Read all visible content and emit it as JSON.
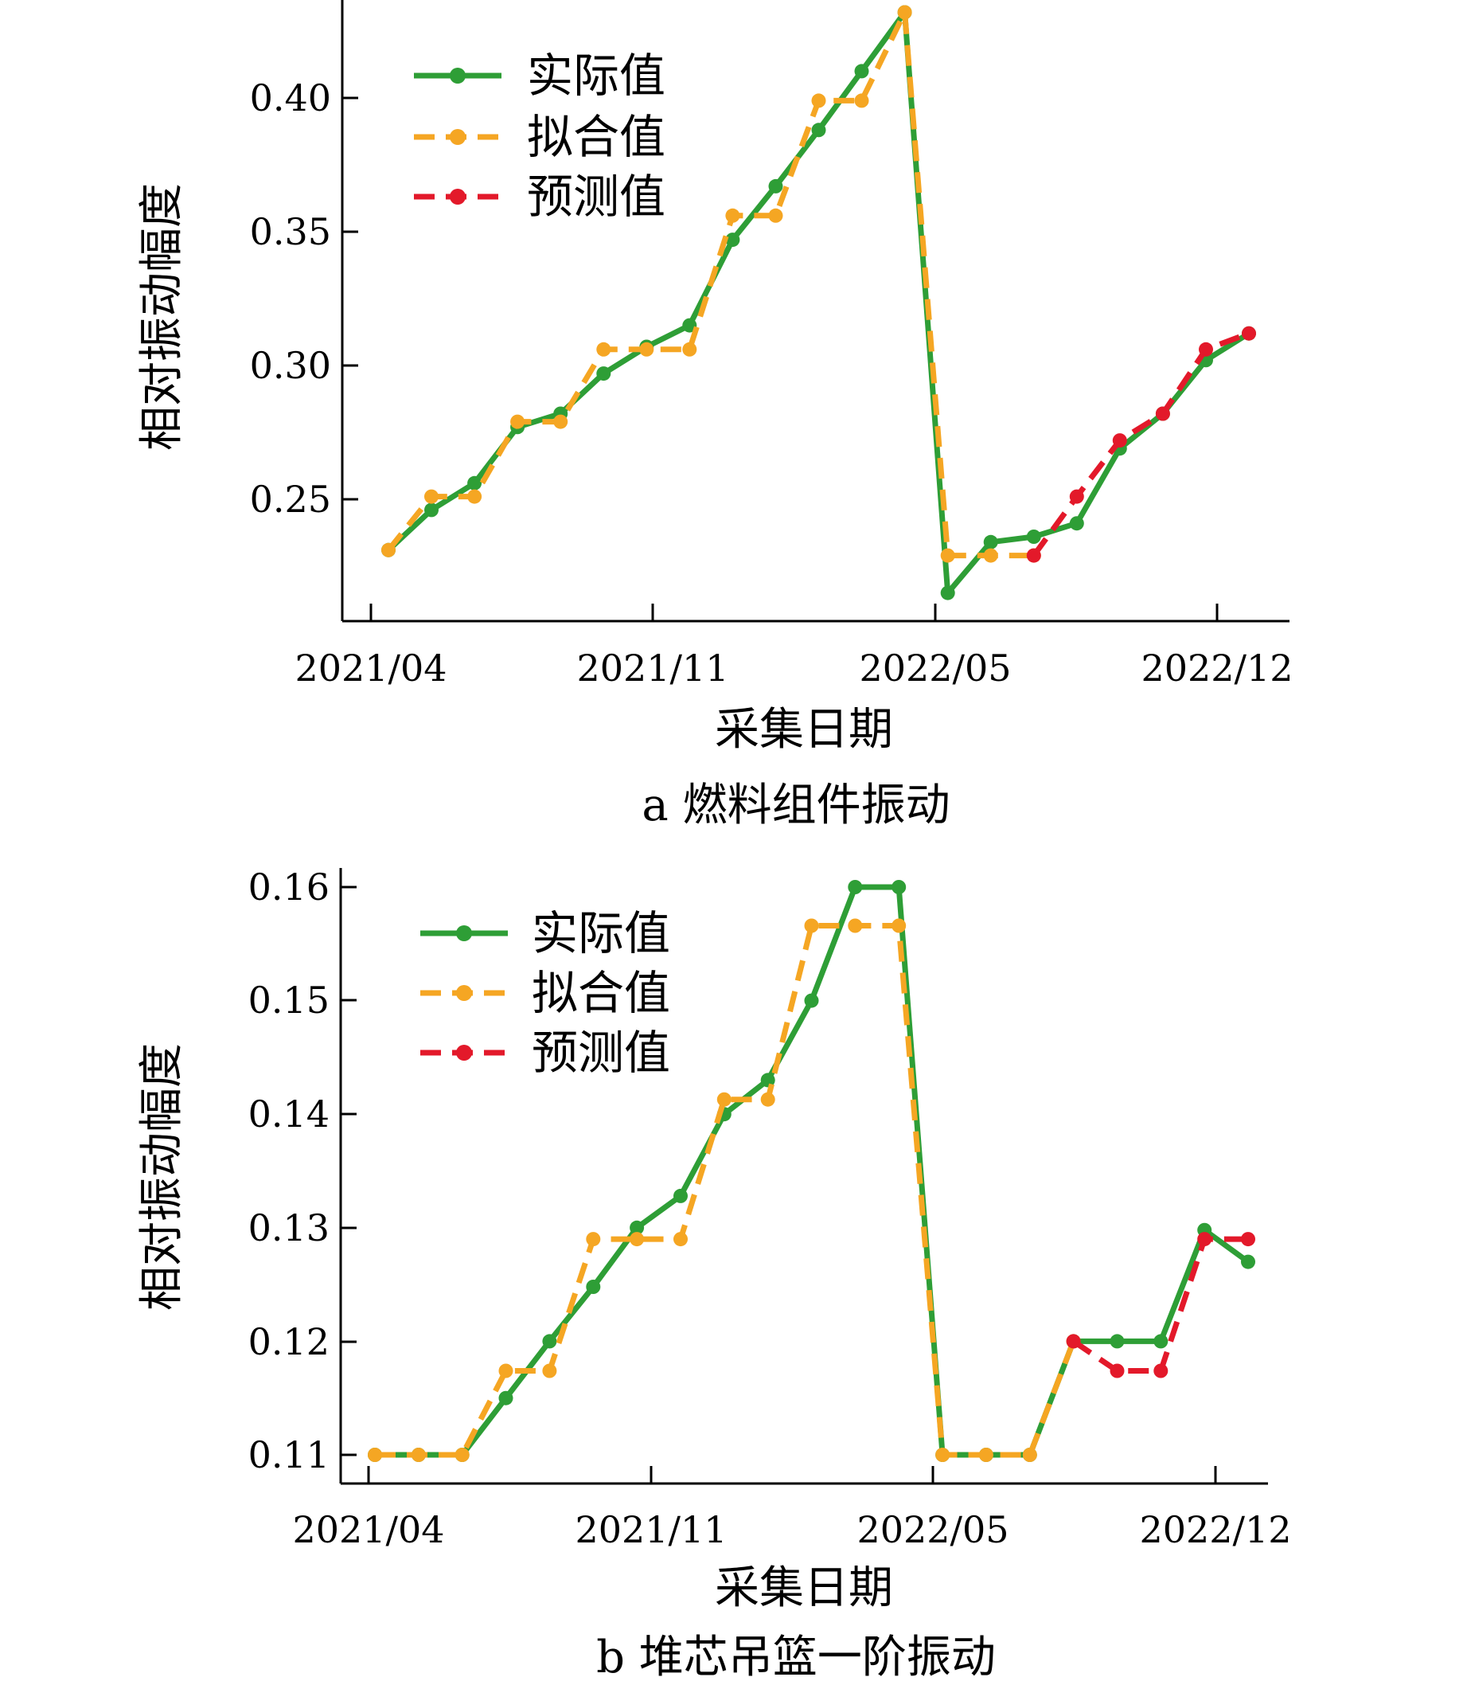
{
  "chart_data": [
    {
      "type": "line",
      "caption": "a  燃料组件振动",
      "xlabel": "采集日期",
      "ylabel": "相对振动幅度",
      "x_ticks": [
        "2021/04",
        "2021/11",
        "2022/05",
        "2022/12"
      ],
      "y_ticks": [
        "0.25",
        "0.30",
        "0.35",
        "0.40"
      ],
      "ylim": [
        0.205,
        0.437
      ],
      "legend_position": "top-left",
      "legend": [
        "实际值",
        "拟合值",
        "预测值"
      ],
      "x": [
        "2021/04",
        "2021/05",
        "2021/06",
        "2021/07",
        "2021/08",
        "2021/09",
        "2021/10",
        "2021/11",
        "2021/12",
        "2022/01",
        "2022/02",
        "2022/03",
        "2022/04",
        "2022/05",
        "2022/06",
        "2022/07",
        "2022/08",
        "2022/09",
        "2022/10",
        "2022/11",
        "2022/12"
      ],
      "series": [
        {
          "name": "实际值",
          "color": "#2e9e36",
          "style": "solid",
          "values": [
            0.231,
            0.246,
            0.256,
            0.277,
            0.282,
            0.297,
            0.307,
            0.315,
            0.347,
            0.367,
            0.388,
            0.41,
            0.432,
            0.215,
            0.234,
            0.236,
            0.241,
            0.269,
            0.282,
            0.302,
            0.312
          ]
        },
        {
          "name": "拟合值",
          "color": "#f5a623",
          "style": "dashed",
          "values": [
            0.231,
            0.251,
            0.251,
            0.279,
            0.279,
            0.306,
            0.306,
            0.306,
            0.356,
            0.356,
            0.399,
            0.399,
            0.432,
            0.229,
            0.229,
            0.229,
            null,
            null,
            null,
            null,
            null
          ]
        },
        {
          "name": "预测值",
          "color": "#e3192a",
          "style": "dashed",
          "values": [
            null,
            null,
            null,
            null,
            null,
            null,
            null,
            null,
            null,
            null,
            null,
            null,
            null,
            null,
            null,
            0.229,
            0.251,
            0.272,
            0.282,
            0.306,
            0.312
          ]
        }
      ]
    },
    {
      "type": "line",
      "caption": "b  堆芯吊篮一阶振动",
      "xlabel": "采集日期",
      "ylabel": "相对振动幅度",
      "x_ticks": [
        "2021/04",
        "2021/11",
        "2022/05",
        "2022/12"
      ],
      "y_ticks": [
        "0.11",
        "0.12",
        "0.13",
        "0.14",
        "0.15",
        "0.16"
      ],
      "ylim": [
        0.1075,
        0.1617
      ],
      "legend_position": "top-left",
      "legend": [
        "实际值",
        "拟合值",
        "预测值"
      ],
      "x": [
        "2021/04",
        "2021/05",
        "2021/06",
        "2021/07",
        "2021/08",
        "2021/09",
        "2021/10",
        "2021/11",
        "2021/12",
        "2022/01",
        "2022/02",
        "2022/03",
        "2022/04",
        "2022/05",
        "2022/06",
        "2022/07",
        "2022/08",
        "2022/09",
        "2022/10",
        "2022/11",
        "2022/12"
      ],
      "series": [
        {
          "name": "实际值",
          "color": "#2e9e36",
          "style": "solid",
          "values": [
            0.11,
            0.11,
            0.11,
            0.115,
            0.12,
            0.1248,
            0.13,
            0.1328,
            0.14,
            0.143,
            0.15,
            0.16,
            0.16,
            0.11,
            0.11,
            0.11,
            0.12,
            0.12,
            0.12,
            0.1298,
            0.127
          ]
        },
        {
          "name": "拟合值",
          "color": "#f5a623",
          "style": "dashed",
          "values": [
            0.11,
            0.11,
            0.11,
            0.1174,
            0.1174,
            0.129,
            0.129,
            0.129,
            0.1413,
            0.1413,
            0.1566,
            0.1566,
            0.1566,
            0.11,
            0.11,
            0.11,
            0.12,
            null,
            null,
            null,
            null
          ]
        },
        {
          "name": "预测值",
          "color": "#e3192a",
          "style": "dashed",
          "values": [
            null,
            null,
            null,
            null,
            null,
            null,
            null,
            null,
            null,
            null,
            null,
            null,
            null,
            null,
            null,
            null,
            0.12,
            0.1174,
            0.1174,
            0.129,
            0.129
          ]
        }
      ]
    }
  ]
}
